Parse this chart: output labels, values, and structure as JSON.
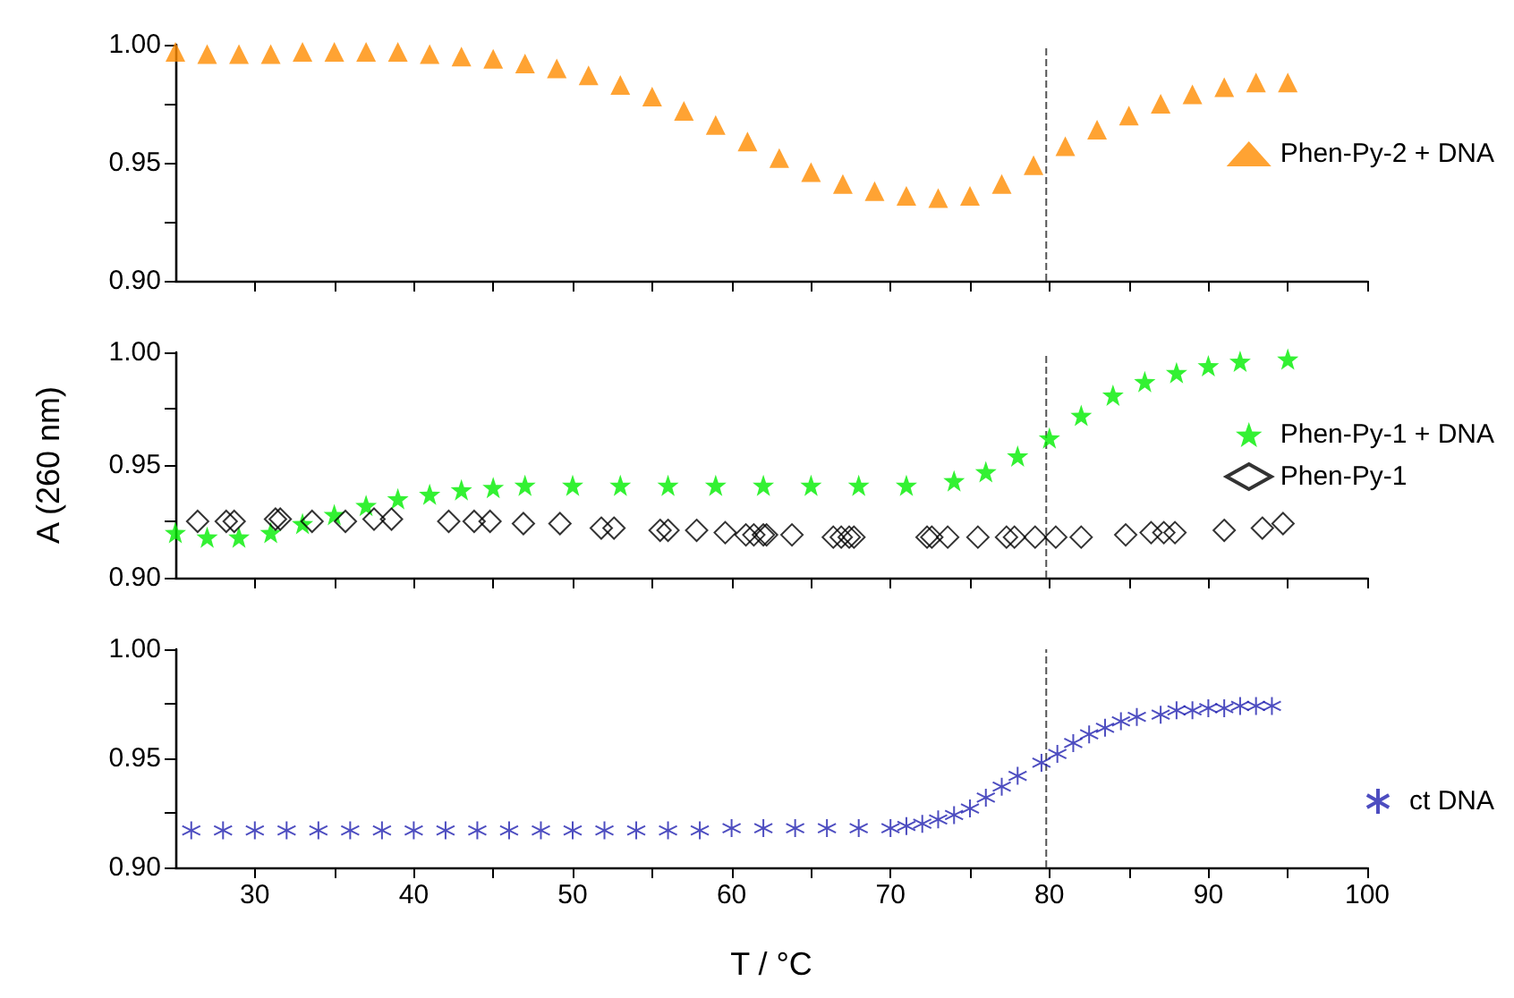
{
  "chart_data": [
    {
      "type": "scatter",
      "xlim": [
        25,
        100
      ],
      "xticks": [
        {
          "value": 30,
          "label": null
        },
        {
          "value": 35,
          "label": null
        },
        {
          "value": 40,
          "label": null
        },
        {
          "value": 45,
          "label": null
        },
        {
          "value": 50,
          "label": null
        },
        {
          "value": 55,
          "label": null
        },
        {
          "value": 60,
          "label": null
        },
        {
          "value": 65,
          "label": null
        },
        {
          "value": 70,
          "label": null
        },
        {
          "value": 75,
          "label": null
        },
        {
          "value": 80,
          "label": null
        },
        {
          "value": 85,
          "label": null
        },
        {
          "value": 90,
          "label": null
        },
        {
          "value": 95,
          "label": null
        },
        {
          "value": 100,
          "label": null
        }
      ],
      "ylim": [
        0.9,
        1.0
      ],
      "yticks": [
        {
          "value": 0.9,
          "label": "0.90"
        },
        {
          "value": 0.925,
          "label": null
        },
        {
          "value": 0.95,
          "label": "0.95"
        },
        {
          "value": 0.975,
          "label": null
        },
        {
          "value": 1.0,
          "label": "1.00"
        }
      ],
      "tick_labels": "y",
      "grid": false,
      "legend": "right",
      "ref_lines": [
        {
          "axis": "x",
          "value": 79.8,
          "color": "#555555",
          "line_style": "dashed"
        }
      ],
      "series": [
        {
          "name": "Phen-Py-2 + DNA",
          "color": "#ff8c00",
          "marker": "triangle",
          "x": [
            25,
            27,
            29,
            31,
            33,
            35,
            37,
            39,
            41,
            43,
            45,
            47,
            49,
            51,
            53,
            55,
            57,
            59,
            61,
            63,
            65,
            67,
            69,
            71,
            73,
            75,
            77,
            79,
            81,
            83,
            85,
            87,
            89,
            91,
            93,
            95
          ],
          "values": [
            0.997,
            0.996,
            0.996,
            0.996,
            0.997,
            0.997,
            0.997,
            0.997,
            0.996,
            0.995,
            0.994,
            0.992,
            0.99,
            0.987,
            0.983,
            0.978,
            0.972,
            0.966,
            0.959,
            0.952,
            0.946,
            0.941,
            0.938,
            0.936,
            0.935,
            0.936,
            0.941,
            0.949,
            0.957,
            0.964,
            0.97,
            0.975,
            0.979,
            0.982,
            0.984,
            0.984
          ]
        }
      ]
    },
    {
      "type": "scatter",
      "xlim": [
        25,
        100
      ],
      "xticks": [
        {
          "value": 30,
          "label": null
        },
        {
          "value": 35,
          "label": null
        },
        {
          "value": 40,
          "label": null
        },
        {
          "value": 45,
          "label": null
        },
        {
          "value": 50,
          "label": null
        },
        {
          "value": 55,
          "label": null
        },
        {
          "value": 60,
          "label": null
        },
        {
          "value": 65,
          "label": null
        },
        {
          "value": 70,
          "label": null
        },
        {
          "value": 75,
          "label": null
        },
        {
          "value": 80,
          "label": null
        },
        {
          "value": 85,
          "label": null
        },
        {
          "value": 90,
          "label": null
        },
        {
          "value": 95,
          "label": null
        },
        {
          "value": 100,
          "label": null
        }
      ],
      "ylim": [
        0.9,
        1.0
      ],
      "yticks": [
        {
          "value": 0.9,
          "label": "0.90"
        },
        {
          "value": 0.925,
          "label": null
        },
        {
          "value": 0.95,
          "label": "0.95"
        },
        {
          "value": 0.975,
          "label": null
        },
        {
          "value": 1.0,
          "label": "1.00"
        }
      ],
      "ylabel": "A (260 nm)",
      "tick_labels": "y",
      "grid": false,
      "legend": "right",
      "ref_lines": [
        {
          "axis": "x",
          "value": 79.8,
          "color": "#555555",
          "line_style": "dashed"
        }
      ],
      "series": [
        {
          "name": "Phen-Py-1 + DNA",
          "color": "#00ee00",
          "marker": "star",
          "x": [
            25,
            27,
            29,
            31,
            33,
            35,
            37,
            39,
            41,
            43,
            45,
            47,
            50,
            53,
            56,
            59,
            62,
            65,
            68,
            71,
            74,
            76,
            78,
            80,
            82,
            84,
            86,
            88,
            90,
            92,
            95
          ],
          "values": [
            0.92,
            0.918,
            0.918,
            0.92,
            0.924,
            0.928,
            0.932,
            0.935,
            0.937,
            0.939,
            0.94,
            0.941,
            0.941,
            0.941,
            0.941,
            0.941,
            0.941,
            0.941,
            0.941,
            0.941,
            0.943,
            0.947,
            0.954,
            0.962,
            0.972,
            0.981,
            0.987,
            0.991,
            0.994,
            0.996,
            0.997
          ]
        },
        {
          "name": "Phen-Py-1",
          "color": "#000000",
          "marker": "diamond",
          "x": [
            26.4,
            28.2,
            28.7,
            31.3,
            31.6,
            33.6,
            35.7,
            37.5,
            38.6,
            42.2,
            43.8,
            44.8,
            46.9,
            49.2,
            51.8,
            52.6,
            55.5,
            56.0,
            57.8,
            59.6,
            60.9,
            61.4,
            62.0,
            62.2,
            63.8,
            66.4,
            66.9,
            67.4,
            67.7,
            72.3,
            72.6,
            73.6,
            75.5,
            77.3,
            77.8,
            79.1,
            80.4,
            82.0,
            84.8,
            86.4,
            87.2,
            87.9,
            91.0,
            93.4,
            94.7
          ],
          "values": [
            0.925,
            0.925,
            0.925,
            0.926,
            0.926,
            0.925,
            0.925,
            0.926,
            0.926,
            0.925,
            0.925,
            0.925,
            0.924,
            0.924,
            0.922,
            0.922,
            0.921,
            0.921,
            0.921,
            0.92,
            0.919,
            0.919,
            0.919,
            0.919,
            0.919,
            0.918,
            0.918,
            0.918,
            0.918,
            0.918,
            0.918,
            0.918,
            0.918,
            0.918,
            0.918,
            0.918,
            0.918,
            0.918,
            0.919,
            0.92,
            0.92,
            0.92,
            0.921,
            0.922,
            0.924
          ]
        }
      ]
    },
    {
      "type": "scatter",
      "xlim": [
        25,
        100
      ],
      "xticks": [
        30,
        {
          "value": 35,
          "label": null
        },
        40,
        {
          "value": 45,
          "label": null
        },
        50,
        {
          "value": 55,
          "label": null
        },
        60,
        {
          "value": 65,
          "label": null
        },
        70,
        {
          "value": 75,
          "label": null
        },
        80,
        {
          "value": 85,
          "label": null
        },
        90,
        {
          "value": 95,
          "label": null
        },
        100
      ],
      "ylim": [
        0.9,
        1.0
      ],
      "yticks": [
        {
          "value": 0.9,
          "label": "0.90"
        },
        {
          "value": 0.925,
          "label": null
        },
        {
          "value": 0.95,
          "label": "0.95"
        },
        {
          "value": 0.975,
          "label": null
        },
        {
          "value": 1.0,
          "label": "1.00"
        }
      ],
      "xlabel": "T / °C",
      "grid": false,
      "legend": "right",
      "ref_lines": [
        {
          "axis": "x",
          "value": 79.8,
          "color": "#555555",
          "line_style": "dashed"
        }
      ],
      "series": [
        {
          "name": "ct DNA",
          "color": "#2020b0",
          "marker": "cross",
          "x": [
            26,
            28,
            30,
            32,
            34,
            36,
            38,
            40,
            42,
            44,
            46,
            48,
            50,
            52,
            54,
            56,
            58,
            60,
            62,
            64,
            66,
            68,
            70,
            71,
            72,
            73,
            74,
            75,
            76,
            77,
            78,
            79.5,
            80.5,
            81.5,
            82.5,
            83.5,
            84.5,
            85.5,
            87,
            88,
            89,
            90,
            91,
            92,
            93,
            94
          ],
          "values": [
            0.917,
            0.917,
            0.917,
            0.917,
            0.917,
            0.917,
            0.917,
            0.917,
            0.917,
            0.917,
            0.917,
            0.917,
            0.917,
            0.917,
            0.917,
            0.917,
            0.917,
            0.918,
            0.918,
            0.918,
            0.918,
            0.918,
            0.918,
            0.919,
            0.92,
            0.922,
            0.924,
            0.927,
            0.932,
            0.937,
            0.942,
            0.948,
            0.952,
            0.957,
            0.961,
            0.964,
            0.967,
            0.969,
            0.97,
            0.972,
            0.972,
            0.973,
            0.973,
            0.974,
            0.974,
            0.974
          ]
        }
      ]
    }
  ]
}
